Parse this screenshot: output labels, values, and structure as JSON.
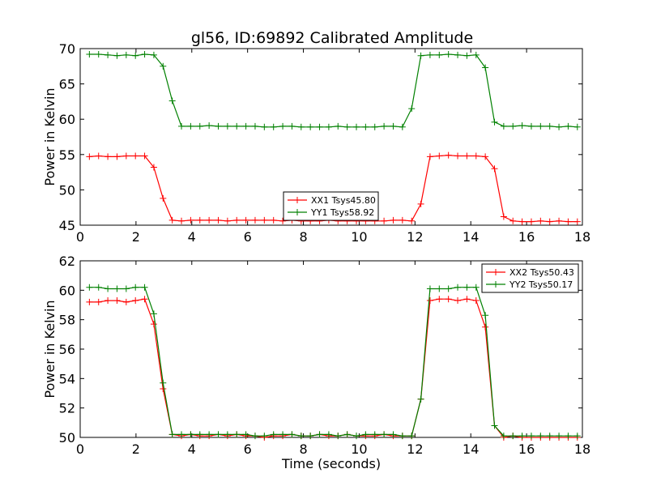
{
  "title": "gl56, ID:69892 Calibrated Amplitude",
  "colors": {
    "XX": "#ff0000",
    "YY": "#008000"
  },
  "chart_data": [
    {
      "type": "line",
      "title": "gl56, ID:69892 Calibrated Amplitude",
      "xlabel": "",
      "ylabel": "Power in Kelvin",
      "xlim": [
        0,
        18
      ],
      "ylim": [
        45,
        70
      ],
      "x_ticks": [
        "0",
        "2",
        "4",
        "6",
        "8",
        "10",
        "12",
        "14",
        "16",
        "18"
      ],
      "y_ticks": [
        "45",
        "50",
        "55",
        "60",
        "65",
        "70"
      ],
      "legend_position": "bottom-center",
      "grid": false,
      "series": [
        {
          "name": "XX1 Tsys45.80",
          "color": "#ff0000",
          "x": [
            0.33,
            0.66,
            0.99,
            1.32,
            1.65,
            1.98,
            2.31,
            2.64,
            2.97,
            3.3,
            3.63,
            3.96,
            4.29,
            4.62,
            4.95,
            5.28,
            5.61,
            5.94,
            6.27,
            6.6,
            6.93,
            7.26,
            7.59,
            7.92,
            8.25,
            8.58,
            8.91,
            9.24,
            9.57,
            9.9,
            10.23,
            10.56,
            10.89,
            11.22,
            11.55,
            11.88,
            12.21,
            12.54,
            12.87,
            13.2,
            13.53,
            13.86,
            14.19,
            14.52,
            14.85,
            15.18,
            15.51,
            15.84,
            16.17,
            16.5,
            16.83,
            17.16,
            17.49,
            17.82
          ],
          "y": [
            54.7,
            54.8,
            54.7,
            54.7,
            54.8,
            54.8,
            54.8,
            53.2,
            48.8,
            45.7,
            45.6,
            45.7,
            45.7,
            45.7,
            45.7,
            45.6,
            45.7,
            45.7,
            45.7,
            45.7,
            45.7,
            45.6,
            45.7,
            45.6,
            45.6,
            45.6,
            45.7,
            45.6,
            45.6,
            45.6,
            45.6,
            45.6,
            45.6,
            45.7,
            45.7,
            45.6,
            48.0,
            54.7,
            54.8,
            54.9,
            54.8,
            54.8,
            54.8,
            54.7,
            53.0,
            46.2,
            45.6,
            45.5,
            45.5,
            45.6,
            45.5,
            45.6,
            45.5,
            45.5
          ]
        },
        {
          "name": "YY1 Tsys58.92",
          "color": "#008000",
          "x": [
            0.33,
            0.66,
            0.99,
            1.32,
            1.65,
            1.98,
            2.31,
            2.64,
            2.97,
            3.3,
            3.63,
            3.96,
            4.29,
            4.62,
            4.95,
            5.28,
            5.61,
            5.94,
            6.27,
            6.6,
            6.93,
            7.26,
            7.59,
            7.92,
            8.25,
            8.58,
            8.91,
            9.24,
            9.57,
            9.9,
            10.23,
            10.56,
            10.89,
            11.22,
            11.55,
            11.88,
            12.21,
            12.54,
            12.87,
            13.2,
            13.53,
            13.86,
            14.19,
            14.52,
            14.85,
            15.18,
            15.51,
            15.84,
            16.17,
            16.5,
            16.83,
            17.16,
            17.49,
            17.82
          ],
          "y": [
            69.2,
            69.2,
            69.1,
            69.0,
            69.1,
            69.0,
            69.2,
            69.1,
            67.5,
            62.6,
            59.0,
            59.0,
            59.0,
            59.1,
            59.0,
            59.0,
            59.0,
            59.0,
            59.0,
            58.9,
            58.9,
            59.0,
            59.0,
            58.9,
            58.9,
            58.9,
            58.9,
            59.0,
            58.9,
            58.9,
            58.9,
            58.9,
            59.0,
            59.0,
            58.9,
            61.5,
            69.0,
            69.1,
            69.1,
            69.2,
            69.1,
            69.0,
            69.1,
            67.3,
            59.6,
            59.0,
            59.0,
            59.1,
            59.0,
            59.0,
            59.0,
            58.9,
            59.0,
            58.9
          ]
        }
      ]
    },
    {
      "type": "line",
      "title": "",
      "xlabel": "Time (seconds)",
      "ylabel": "Power in Kelvin",
      "xlim": [
        0,
        18
      ],
      "ylim": [
        50,
        62
      ],
      "x_ticks": [
        "0",
        "2",
        "4",
        "6",
        "8",
        "10",
        "12",
        "14",
        "16",
        "18"
      ],
      "y_ticks": [
        "50",
        "52",
        "54",
        "56",
        "58",
        "60",
        "62"
      ],
      "legend_position": "top-right",
      "grid": false,
      "series": [
        {
          "name": "XX2 Tsys50.43",
          "color": "#ff0000",
          "x": [
            0.33,
            0.66,
            0.99,
            1.32,
            1.65,
            1.98,
            2.31,
            2.64,
            2.97,
            3.3,
            3.63,
            3.96,
            4.29,
            4.62,
            4.95,
            5.28,
            5.61,
            5.94,
            6.27,
            6.6,
            6.93,
            7.26,
            7.59,
            7.92,
            8.25,
            8.58,
            8.91,
            9.24,
            9.57,
            9.9,
            10.23,
            10.56,
            10.89,
            11.22,
            11.55,
            11.88,
            12.21,
            12.54,
            12.87,
            13.2,
            13.53,
            13.86,
            14.19,
            14.52,
            14.85,
            15.18,
            15.51,
            15.84,
            16.17,
            16.5,
            16.83,
            17.16,
            17.49,
            17.82
          ],
          "y": [
            59.2,
            59.2,
            59.3,
            59.3,
            59.2,
            59.3,
            59.4,
            57.7,
            53.3,
            50.2,
            50.1,
            50.2,
            50.1,
            50.1,
            50.2,
            50.1,
            50.2,
            50.1,
            50.1,
            50.0,
            50.1,
            50.1,
            50.2,
            50.1,
            50.1,
            50.2,
            50.1,
            50.1,
            50.2,
            50.1,
            50.1,
            50.1,
            50.2,
            50.1,
            50.1,
            50.1,
            52.6,
            59.3,
            59.4,
            59.4,
            59.3,
            59.4,
            59.3,
            57.5,
            50.8,
            50.0,
            50.1,
            50.0,
            50.0,
            50.0,
            50.0,
            50.0,
            50.0,
            50.0
          ]
        },
        {
          "name": "YY2 Tsys50.17",
          "color": "#008000",
          "x": [
            0.33,
            0.66,
            0.99,
            1.32,
            1.65,
            1.98,
            2.31,
            2.64,
            2.97,
            3.3,
            3.63,
            3.96,
            4.29,
            4.62,
            4.95,
            5.28,
            5.61,
            5.94,
            6.27,
            6.6,
            6.93,
            7.26,
            7.59,
            7.92,
            8.25,
            8.58,
            8.91,
            9.24,
            9.57,
            9.9,
            10.23,
            10.56,
            10.89,
            11.22,
            11.55,
            11.88,
            12.21,
            12.54,
            12.87,
            13.2,
            13.53,
            13.86,
            14.19,
            14.52,
            14.85,
            15.18,
            15.51,
            15.84,
            16.17,
            16.5,
            16.83,
            17.16,
            17.49,
            17.82
          ],
          "y": [
            60.2,
            60.2,
            60.1,
            60.1,
            60.1,
            60.2,
            60.2,
            58.4,
            53.7,
            50.2,
            50.2,
            50.2,
            50.2,
            50.2,
            50.2,
            50.2,
            50.2,
            50.2,
            50.1,
            50.1,
            50.2,
            50.2,
            50.2,
            50.1,
            50.1,
            50.2,
            50.2,
            50.1,
            50.2,
            50.1,
            50.2,
            50.2,
            50.2,
            50.2,
            50.1,
            50.1,
            52.6,
            60.1,
            60.1,
            60.1,
            60.2,
            60.2,
            60.2,
            58.3,
            50.8,
            50.1,
            50.1,
            50.1,
            50.1,
            50.1,
            50.1,
            50.1,
            50.1,
            50.1
          ]
        }
      ]
    }
  ]
}
